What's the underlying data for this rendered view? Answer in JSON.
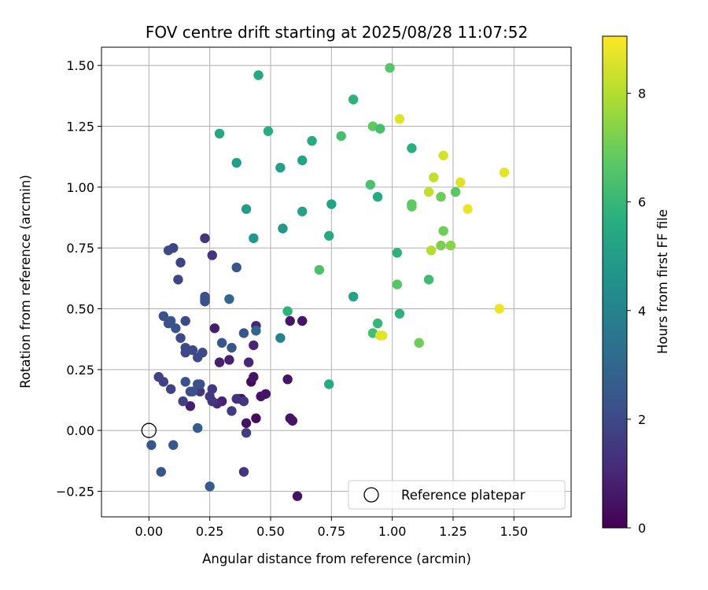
{
  "chart_data": {
    "type": "scatter",
    "title": "FOV centre drift starting at 2025/08/28 11:07:52",
    "xlabel": "Angular distance from reference (arcmin)",
    "ylabel": "Rotation from reference (arcmin)",
    "xlim": [
      -0.195,
      1.735
    ],
    "ylim": [
      -0.355,
      1.575
    ],
    "xticks": [
      0.0,
      0.25,
      0.5,
      0.75,
      1.0,
      1.25,
      1.5
    ],
    "xtick_labels": [
      "0.00",
      "0.25",
      "0.50",
      "0.75",
      "1.00",
      "1.25",
      "1.50"
    ],
    "yticks": [
      -0.25,
      0.0,
      0.25,
      0.5,
      0.75,
      1.0,
      1.25,
      1.5
    ],
    "ytick_labels": [
      "−0.25",
      "0.00",
      "0.25",
      "0.50",
      "0.75",
      "1.00",
      "1.25",
      "1.50"
    ],
    "grid": true,
    "colormap": "viridis",
    "colorbar": {
      "label": "Hours from first FF file",
      "range": [
        0,
        9.05
      ],
      "ticks": [
        0,
        2,
        4,
        6,
        8
      ],
      "tick_labels": [
        "0",
        "2",
        "4",
        "6",
        "8"
      ]
    },
    "legend": {
      "placement": "lower-right",
      "entries": [
        {
          "label": "Reference platepar",
          "marker": "open-circle"
        }
      ]
    },
    "reference_point": {
      "x": 0.0,
      "y": 0.0
    },
    "points": [
      [
        0.42,
        0.2,
        0.3
      ],
      [
        0.44,
        0.05,
        0.3
      ],
      [
        0.38,
        0.13,
        0.4
      ],
      [
        0.4,
        0.03,
        0.5
      ],
      [
        0.37,
        0.13,
        0.4
      ],
      [
        0.58,
        0.05,
        0.5
      ],
      [
        0.59,
        0.04,
        0.5
      ],
      [
        0.61,
        -0.27,
        0.5
      ],
      [
        0.57,
        0.21,
        0.5
      ],
      [
        0.63,
        0.45,
        0.5
      ],
      [
        0.58,
        0.45,
        0.5
      ],
      [
        0.48,
        0.15,
        0.5
      ],
      [
        0.46,
        0.14,
        0.5
      ],
      [
        0.43,
        0.22,
        0.5
      ],
      [
        0.27,
        0.42,
        0.7
      ],
      [
        0.29,
        0.28,
        0.8
      ],
      [
        0.33,
        0.29,
        0.8
      ],
      [
        0.3,
        0.12,
        0.9
      ],
      [
        0.28,
        0.11,
        1.1
      ],
      [
        0.17,
        0.1,
        0.8
      ],
      [
        0.41,
        0.28,
        1.0
      ],
      [
        0.43,
        0.35,
        1.0
      ],
      [
        0.44,
        0.43,
        1.0
      ],
      [
        0.39,
        -0.17,
        1.4
      ],
      [
        0.4,
        -0.01,
        1.6
      ],
      [
        0.36,
        0.13,
        1.3
      ],
      [
        0.34,
        0.08,
        1.6
      ],
      [
        0.39,
        0.12,
        1.5
      ],
      [
        0.25,
        0.14,
        1.5
      ],
      [
        0.26,
        0.17,
        1.5
      ],
      [
        0.21,
        0.16,
        1.5
      ],
      [
        0.26,
        0.12,
        1.5
      ],
      [
        0.23,
        0.79,
        1.4
      ],
      [
        0.26,
        0.72,
        1.4
      ],
      [
        0.13,
        0.69,
        1.8
      ],
      [
        0.12,
        0.62,
        1.8
      ],
      [
        0.1,
        0.75,
        1.9
      ],
      [
        0.08,
        0.74,
        2.0
      ],
      [
        0.04,
        0.22,
        1.8
      ],
      [
        0.06,
        0.2,
        1.8
      ],
      [
        0.09,
        0.17,
        1.8
      ],
      [
        0.14,
        0.12,
        1.8
      ],
      [
        0.13,
        0.38,
        2.0
      ],
      [
        0.15,
        0.45,
        2.0
      ],
      [
        0.15,
        0.34,
        2.0
      ],
      [
        0.15,
        0.32,
        2.0
      ],
      [
        0.18,
        0.33,
        2.0
      ],
      [
        0.2,
        0.3,
        2.0
      ],
      [
        0.22,
        0.32,
        2.0
      ],
      [
        0.17,
        0.16,
        2.1
      ],
      [
        0.18,
        0.16,
        2.2
      ],
      [
        0.21,
        0.19,
        2.2
      ],
      [
        0.2,
        0.19,
        2.2
      ],
      [
        0.15,
        0.2,
        2.2
      ],
      [
        0.23,
        0.55,
        2.2
      ],
      [
        0.23,
        0.54,
        2.2
      ],
      [
        0.23,
        0.53,
        2.2
      ],
      [
        0.06,
        0.47,
        2.2
      ],
      [
        0.09,
        0.45,
        2.3
      ],
      [
        0.08,
        0.44,
        2.3
      ],
      [
        0.11,
        0.42,
        2.3
      ],
      [
        0.01,
        -0.06,
        2.4
      ],
      [
        0.05,
        -0.17,
        2.4
      ],
      [
        0.1,
        -0.06,
        2.4
      ],
      [
        0.25,
        -0.23,
        2.6
      ],
      [
        0.2,
        0.01,
        2.6
      ],
      [
        0.39,
        0.4,
        2.4
      ],
      [
        0.34,
        0.34,
        2.4
      ],
      [
        0.36,
        0.67,
        2.4
      ],
      [
        0.3,
        0.36,
        2.4
      ],
      [
        0.33,
        0.54,
        3.0
      ],
      [
        0.44,
        0.41,
        3.0
      ],
      [
        0.54,
        0.38,
        4.0
      ],
      [
        0.43,
        0.79,
        4.8
      ],
      [
        0.55,
        0.83,
        4.8
      ],
      [
        0.4,
        0.91,
        5.0
      ],
      [
        0.63,
        0.9,
        5.2
      ],
      [
        0.75,
        0.93,
        5.2
      ],
      [
        0.74,
        0.8,
        5.5
      ],
      [
        0.54,
        1.08,
        5.1
      ],
      [
        0.63,
        1.11,
        5.2
      ],
      [
        0.67,
        1.19,
        5.5
      ],
      [
        0.36,
        1.1,
        5.0
      ],
      [
        0.29,
        1.22,
        5.4
      ],
      [
        0.45,
        1.46,
        5.5
      ],
      [
        0.49,
        1.23,
        5.6
      ],
      [
        0.84,
        1.36,
        5.8
      ],
      [
        0.79,
        1.21,
        6.3
      ],
      [
        0.84,
        0.55,
        5.2
      ],
      [
        0.94,
        0.96,
        5.5
      ],
      [
        1.08,
        1.16,
        5.7
      ],
      [
        0.92,
        1.25,
        6.8
      ],
      [
        0.95,
        1.24,
        6.3
      ],
      [
        0.91,
        1.01,
        6.4
      ],
      [
        0.99,
        1.49,
        6.6
      ],
      [
        0.57,
        0.49,
        5.8
      ],
      [
        0.74,
        0.19,
        5.5
      ],
      [
        0.7,
        0.66,
        6.4
      ],
      [
        1.02,
        0.73,
        5.8
      ],
      [
        1.03,
        0.48,
        5.8
      ],
      [
        0.94,
        0.44,
        6.0
      ],
      [
        0.92,
        0.4,
        6.3
      ],
      [
        1.02,
        0.6,
        6.6
      ],
      [
        1.11,
        0.36,
        7.0
      ],
      [
        1.15,
        0.62,
        6.2
      ],
      [
        1.08,
        0.93,
        6.8
      ],
      [
        1.08,
        0.92,
        6.8
      ],
      [
        1.2,
        0.96,
        7.0
      ],
      [
        1.26,
        0.98,
        6.7
      ],
      [
        1.21,
        0.82,
        7.0
      ],
      [
        1.2,
        0.76,
        7.2
      ],
      [
        1.24,
        0.76,
        7.4
      ],
      [
        1.03,
        1.28,
        8.6
      ],
      [
        1.21,
        1.13,
        8.5
      ],
      [
        1.17,
        1.04,
        8.2
      ],
      [
        1.15,
        0.98,
        8.2
      ],
      [
        1.16,
        0.74,
        8.0
      ],
      [
        1.28,
        1.02,
        8.6
      ],
      [
        1.31,
        0.91,
        8.8
      ],
      [
        1.46,
        1.06,
        8.7
      ],
      [
        1.44,
        0.5,
        8.8
      ],
      [
        0.95,
        0.39,
        8.6
      ],
      [
        0.96,
        0.39,
        8.7
      ]
    ]
  }
}
